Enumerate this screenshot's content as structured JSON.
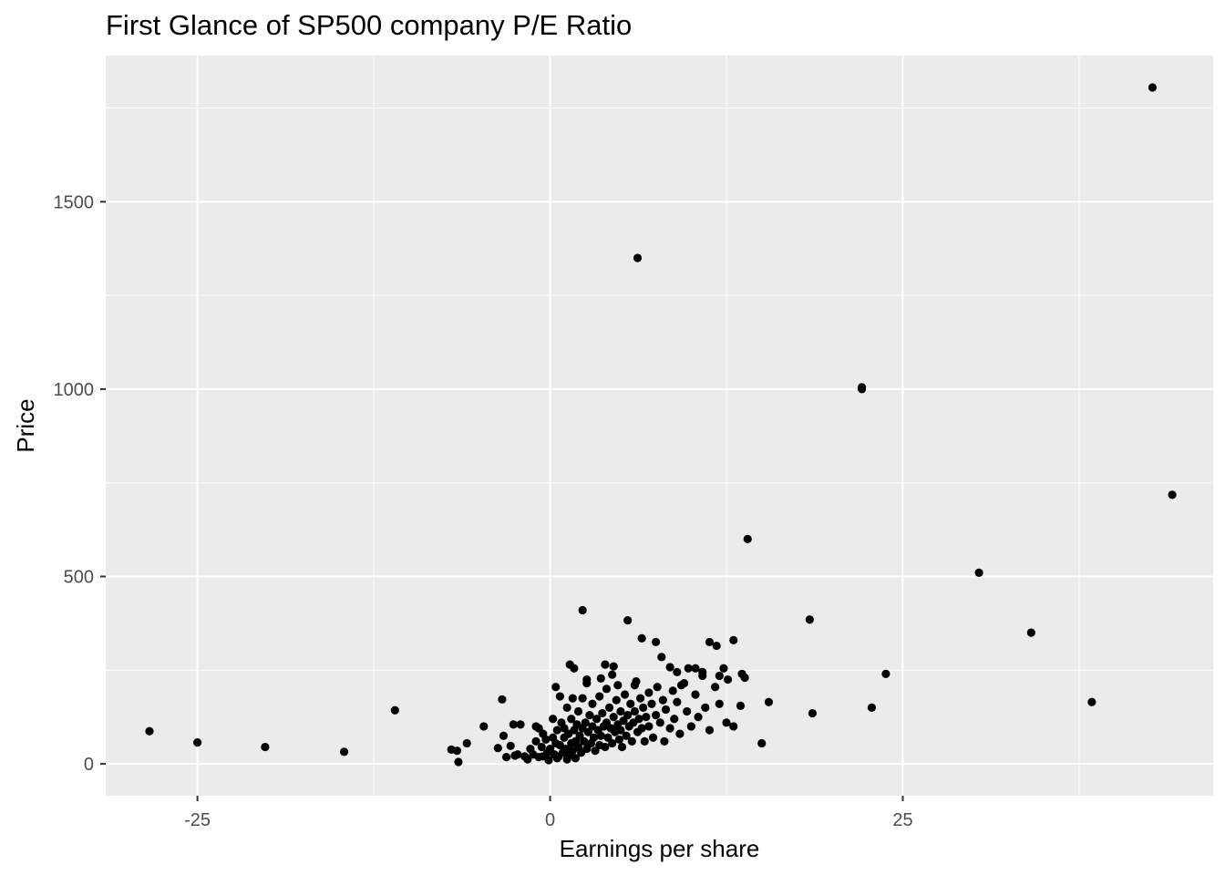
{
  "chart_data": {
    "type": "scatter",
    "title": "First Glance of SP500 company P/E Ratio",
    "xlabel": "Earnings per share",
    "ylabel": "Price",
    "xlim": [
      -31.5,
      47.0
    ],
    "ylim": [
      -85,
      1890
    ],
    "x_ticks": [
      -25,
      0,
      25
    ],
    "x_tick_labels": [
      "-25",
      "0",
      "25"
    ],
    "y_ticks": [
      0,
      500,
      1000,
      1500
    ],
    "y_tick_labels": [
      "0",
      "500",
      "1000",
      "1500"
    ],
    "grid": true,
    "legend": "none",
    "colors": {
      "panel": "#ebebeb",
      "grid": "#ffffff",
      "point": "#000000"
    },
    "points": [
      [
        -28.4,
        87
      ],
      [
        -25.0,
        57
      ],
      [
        -20.2,
        45
      ],
      [
        -14.6,
        32
      ],
      [
        -11.0,
        143
      ],
      [
        -7.0,
        38
      ],
      [
        -6.5,
        5
      ],
      [
        -6.6,
        35
      ],
      [
        -5.9,
        55
      ],
      [
        -4.7,
        100
      ],
      [
        -3.7,
        42
      ],
      [
        -3.4,
        172
      ],
      [
        -3.3,
        75
      ],
      [
        -3.1,
        18
      ],
      [
        -2.8,
        48
      ],
      [
        -2.6,
        105
      ],
      [
        -2.5,
        22
      ],
      [
        -2.3,
        25
      ],
      [
        -2.1,
        105
      ],
      [
        -1.8,
        20
      ],
      [
        -1.6,
        12
      ],
      [
        -1.4,
        40
      ],
      [
        -1.2,
        25
      ],
      [
        -1.0,
        60
      ],
      [
        -1.0,
        100
      ],
      [
        -0.8,
        95
      ],
      [
        -0.8,
        18
      ],
      [
        -0.6,
        45
      ],
      [
        -0.5,
        80
      ],
      [
        -0.5,
        20
      ],
      [
        -0.3,
        65
      ],
      [
        -0.2,
        30
      ],
      [
        -0.1,
        10
      ],
      [
        0.0,
        40
      ],
      [
        0.2,
        70
      ],
      [
        0.2,
        120
      ],
      [
        0.3,
        25
      ],
      [
        0.4,
        55
      ],
      [
        0.5,
        90
      ],
      [
        0.5,
        15
      ],
      [
        0.6,
        20
      ],
      [
        0.7,
        50
      ],
      [
        0.8,
        110
      ],
      [
        0.9,
        30
      ],
      [
        1.0,
        70
      ],
      [
        1.0,
        95
      ],
      [
        1.1,
        40
      ],
      [
        1.2,
        12
      ],
      [
        1.2,
        150
      ],
      [
        1.3,
        80
      ],
      [
        1.4,
        25
      ],
      [
        1.5,
        55
      ],
      [
        1.5,
        120
      ],
      [
        1.6,
        35
      ],
      [
        1.7,
        90
      ],
      [
        1.8,
        15
      ],
      [
        1.8,
        60
      ],
      [
        1.9,
        105
      ],
      [
        2.0,
        140
      ],
      [
        2.0,
        45
      ],
      [
        2.1,
        75
      ],
      [
        2.2,
        30
      ],
      [
        2.3,
        95
      ],
      [
        2.3,
        175
      ],
      [
        2.4,
        60
      ],
      [
        2.5,
        110
      ],
      [
        2.6,
        40
      ],
      [
        2.6,
        215
      ],
      [
        2.7,
        85
      ],
      [
        2.8,
        130
      ],
      [
        2.9,
        55
      ],
      [
        3.0,
        100
      ],
      [
        3.0,
        160
      ],
      [
        3.1,
        70
      ],
      [
        3.2,
        35
      ],
      [
        3.3,
        120
      ],
      [
        3.4,
        90
      ],
      [
        3.5,
        50
      ],
      [
        3.5,
        180
      ],
      [
        3.6,
        75
      ],
      [
        3.7,
        135
      ],
      [
        3.8,
        100
      ],
      [
        3.9,
        45
      ],
      [
        4.0,
        110
      ],
      [
        4.0,
        200
      ],
      [
        4.1,
        70
      ],
      [
        4.2,
        150
      ],
      [
        4.3,
        95
      ],
      [
        4.4,
        55
      ],
      [
        4.5,
        125
      ],
      [
        4.5,
        260
      ],
      [
        4.6,
        85
      ],
      [
        4.7,
        170
      ],
      [
        4.8,
        105
      ],
      [
        4.9,
        65
      ],
      [
        5.0,
        140
      ],
      [
        5.0,
        90
      ],
      [
        5.1,
        45
      ],
      [
        5.2,
        115
      ],
      [
        5.3,
        185
      ],
      [
        5.4,
        75
      ],
      [
        5.5,
        130
      ],
      [
        5.6,
        100
      ],
      [
        5.7,
        160
      ],
      [
        5.8,
        60
      ],
      [
        5.9,
        110
      ],
      [
        6.0,
        140
      ],
      [
        6.0,
        210
      ],
      [
        6.2,
        85
      ],
      [
        6.3,
        120
      ],
      [
        6.4,
        175
      ],
      [
        6.5,
        95
      ],
      [
        6.6,
        150
      ],
      [
        6.7,
        60
      ],
      [
        6.8,
        125
      ],
      [
        7.0,
        190
      ],
      [
        7.0,
        100
      ],
      [
        7.2,
        160
      ],
      [
        7.3,
        70
      ],
      [
        7.5,
        130
      ],
      [
        7.6,
        205
      ],
      [
        7.8,
        110
      ],
      [
        8.0,
        170
      ],
      [
        8.1,
        60
      ],
      [
        8.2,
        145
      ],
      [
        8.5,
        95
      ],
      [
        8.7,
        195
      ],
      [
        8.8,
        120
      ],
      [
        9.0,
        165
      ],
      [
        9.2,
        80
      ],
      [
        9.5,
        215
      ],
      [
        9.7,
        140
      ],
      [
        10.0,
        100
      ],
      [
        10.3,
        185
      ],
      [
        10.5,
        125
      ],
      [
        10.8,
        235
      ],
      [
        11.0,
        150
      ],
      [
        11.3,
        90
      ],
      [
        11.7,
        205
      ],
      [
        12.0,
        160
      ],
      [
        12.3,
        255
      ],
      [
        0.4,
        205
      ],
      [
        0.7,
        180
      ],
      [
        1.4,
        265
      ],
      [
        1.6,
        175
      ],
      [
        1.7,
        255
      ],
      [
        2.3,
        410
      ],
      [
        2.6,
        225
      ],
      [
        3.6,
        228
      ],
      [
        3.9,
        265
      ],
      [
        4.4,
        238
      ],
      [
        4.8,
        210
      ],
      [
        5.5,
        383
      ],
      [
        6.1,
        220
      ],
      [
        6.5,
        335
      ],
      [
        7.5,
        325
      ],
      [
        7.9,
        285
      ],
      [
        8.5,
        258
      ],
      [
        9.0,
        245
      ],
      [
        9.3,
        210
      ],
      [
        9.8,
        255
      ],
      [
        10.3,
        255
      ],
      [
        10.8,
        245
      ],
      [
        11.3,
        325
      ],
      [
        11.8,
        315
      ],
      [
        12.0,
        235
      ],
      [
        12.6,
        225
      ],
      [
        13.0,
        330
      ],
      [
        13.6,
        240
      ],
      [
        13.8,
        230
      ],
      [
        14.0,
        600
      ],
      [
        13.5,
        155
      ],
      [
        13.0,
        100
      ],
      [
        12.5,
        110
      ],
      [
        15.5,
        165
      ],
      [
        15.0,
        55
      ],
      [
        18.4,
        385
      ],
      [
        18.6,
        135
      ],
      [
        22.1,
        1000
      ],
      [
        22.1,
        1005
      ],
      [
        22.8,
        150
      ],
      [
        23.8,
        240
      ],
      [
        30.4,
        510
      ],
      [
        34.1,
        350
      ],
      [
        38.4,
        165
      ],
      [
        42.7,
        1805
      ],
      [
        44.1,
        718
      ],
      [
        6.2,
        1350
      ]
    ]
  }
}
